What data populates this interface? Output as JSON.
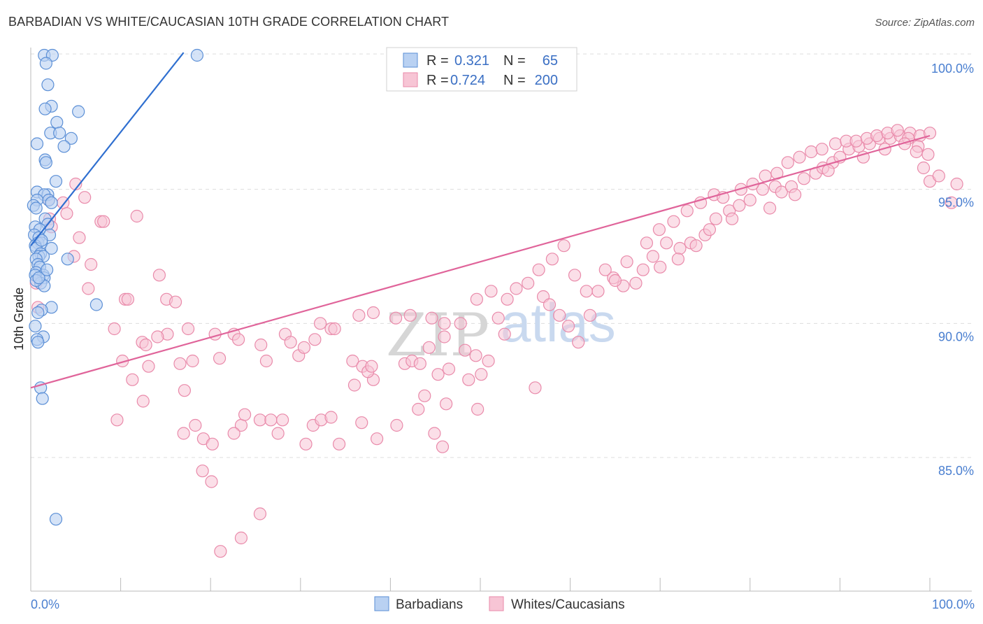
{
  "title": "BARBADIAN VS WHITE/CAUCASIAN 10TH GRADE CORRELATION CHART",
  "source": "Source: ZipAtlas.com",
  "watermark": {
    "zip": "ZIP",
    "atlas": "atlas"
  },
  "colors": {
    "barbadian_fill": "#b9d1f2",
    "barbadian_stroke": "#5b8fd6",
    "barbadian_line": "#2f6fd0",
    "white_fill": "#f7c5d5",
    "white_stroke": "#e98aaa",
    "white_line": "#e0649a",
    "grid": "#dddddd",
    "tick_label": "#4a7fd0"
  },
  "legend": {
    "rows": [
      {
        "r_label": "R =",
        "r_value": "0.321",
        "n_label": "N =",
        "n_value": "65"
      },
      {
        "r_label": "R =",
        "r_value": "0.724",
        "n_label": "N =",
        "n_value": "200"
      }
    ]
  },
  "bottom_legend": [
    "Barbadians",
    "Whites/Caucasians"
  ],
  "chart_data": {
    "type": "scatter",
    "title": "BARBADIAN VS WHITE/CAUCASIAN 10TH GRADE CORRELATION CHART",
    "xlabel": "",
    "ylabel": "10th Grade",
    "xlim": [
      0,
      100
    ],
    "ylim": [
      80.0,
      100.5
    ],
    "x_tick_labels": [
      "0.0%",
      "100.0%"
    ],
    "y_tick_labels": [
      "100.0%",
      "95.0%",
      "90.0%",
      "85.0%"
    ],
    "y_ticks": [
      100,
      95,
      90,
      85
    ],
    "grid": true,
    "legend_position": "top-center",
    "series": [
      {
        "name": "Barbadians",
        "r": 0.321,
        "n": 65,
        "trend": {
          "x": [
            0,
            17.0
          ],
          "y": [
            92.9,
            100.1
          ]
        },
        "points": [
          [
            1.5,
            100.0
          ],
          [
            2.4,
            100.0
          ],
          [
            18.5,
            100.0
          ],
          [
            1.7,
            99.7
          ],
          [
            1.9,
            98.9
          ],
          [
            2.3,
            98.1
          ],
          [
            1.6,
            98.0
          ],
          [
            5.3,
            97.9
          ],
          [
            2.9,
            97.5
          ],
          [
            2.2,
            97.1
          ],
          [
            3.2,
            97.1
          ],
          [
            4.5,
            96.9
          ],
          [
            0.7,
            96.7
          ],
          [
            3.7,
            96.6
          ],
          [
            1.6,
            96.1
          ],
          [
            1.7,
            96.0
          ],
          [
            2.8,
            95.3
          ],
          [
            0.7,
            94.9
          ],
          [
            1.9,
            94.8
          ],
          [
            1.5,
            94.8
          ],
          [
            0.7,
            94.6
          ],
          [
            2.0,
            94.6
          ],
          [
            2.3,
            94.5
          ],
          [
            0.3,
            94.4
          ],
          [
            0.6,
            94.3
          ],
          [
            1.6,
            93.9
          ],
          [
            1.9,
            93.7
          ],
          [
            0.5,
            93.6
          ],
          [
            1.0,
            93.5
          ],
          [
            2.1,
            93.3
          ],
          [
            0.4,
            93.3
          ],
          [
            0.9,
            93.2
          ],
          [
            0.8,
            93.0
          ],
          [
            1.2,
            93.0
          ],
          [
            0.5,
            92.9
          ],
          [
            2.3,
            92.8
          ],
          [
            0.6,
            92.8
          ],
          [
            1.1,
            92.6
          ],
          [
            0.9,
            92.5
          ],
          [
            1.4,
            92.5
          ],
          [
            0.6,
            92.4
          ],
          [
            4.1,
            92.4
          ],
          [
            0.8,
            92.2
          ],
          [
            1.0,
            92.1
          ],
          [
            0.6,
            91.9
          ],
          [
            1.4,
            91.8
          ],
          [
            1.5,
            91.7
          ],
          [
            0.5,
            91.8
          ],
          [
            1.1,
            91.5
          ],
          [
            1.5,
            91.4
          ],
          [
            0.6,
            91.6
          ],
          [
            0.9,
            91.7
          ],
          [
            7.3,
            90.7
          ],
          [
            2.3,
            90.6
          ],
          [
            1.2,
            90.5
          ],
          [
            0.8,
            90.4
          ],
          [
            0.5,
            89.9
          ],
          [
            1.4,
            89.5
          ],
          [
            0.7,
            89.4
          ],
          [
            0.8,
            89.3
          ],
          [
            1.1,
            87.6
          ],
          [
            1.3,
            87.2
          ],
          [
            2.8,
            82.7
          ],
          [
            1.2,
            93.1
          ],
          [
            1.8,
            92.0
          ]
        ]
      },
      {
        "name": "Whites/Caucasians",
        "r": 0.724,
        "n": 200,
        "trend": {
          "x": [
            0,
            100
          ],
          "y": [
            87.6,
            97.0
          ]
        },
        "points": [
          [
            5.0,
            95.2
          ],
          [
            6.0,
            94.7
          ],
          [
            2.0,
            94.6
          ],
          [
            3.6,
            94.5
          ],
          [
            4.0,
            94.1
          ],
          [
            2.1,
            93.9
          ],
          [
            7.8,
            93.8
          ],
          [
            8.1,
            93.8
          ],
          [
            11.8,
            94.0
          ],
          [
            5.4,
            93.2
          ],
          [
            2.3,
            93.6
          ],
          [
            4.8,
            92.5
          ],
          [
            6.7,
            92.2
          ],
          [
            0.6,
            91.5
          ],
          [
            14.3,
            91.8
          ],
          [
            6.4,
            91.3
          ],
          [
            10.5,
            90.9
          ],
          [
            10.8,
            90.9
          ],
          [
            15.1,
            90.9
          ],
          [
            16.1,
            90.8
          ],
          [
            0.8,
            90.6
          ],
          [
            9.3,
            89.8
          ],
          [
            15.2,
            89.6
          ],
          [
            17.5,
            89.8
          ],
          [
            12.4,
            89.3
          ],
          [
            12.8,
            89.2
          ],
          [
            14.1,
            89.5
          ],
          [
            20.5,
            89.6
          ],
          [
            22.6,
            89.6
          ],
          [
            23.1,
            89.4
          ],
          [
            25.6,
            89.2
          ],
          [
            28.3,
            89.6
          ],
          [
            28.9,
            89.3
          ],
          [
            29.8,
            88.8
          ],
          [
            31.6,
            89.4
          ],
          [
            32.2,
            90.0
          ],
          [
            30.4,
            89.1
          ],
          [
            10.2,
            88.6
          ],
          [
            13.1,
            88.4
          ],
          [
            16.6,
            88.5
          ],
          [
            18.0,
            88.6
          ],
          [
            21.0,
            88.7
          ],
          [
            26.2,
            88.6
          ],
          [
            33.4,
            89.8
          ],
          [
            33.8,
            89.8
          ],
          [
            35.8,
            88.6
          ],
          [
            36.9,
            88.4
          ],
          [
            38.1,
            87.9
          ],
          [
            37.5,
            88.2
          ],
          [
            37.9,
            88.4
          ],
          [
            36.0,
            87.7
          ],
          [
            36.8,
            86.3
          ],
          [
            41.6,
            88.5
          ],
          [
            42.4,
            88.6
          ],
          [
            43.3,
            88.5
          ],
          [
            44.3,
            89.1
          ],
          [
            45.3,
            88.1
          ],
          [
            46.5,
            88.3
          ],
          [
            46.0,
            89.5
          ],
          [
            48.3,
            89.0
          ],
          [
            50.1,
            88.1
          ],
          [
            49.5,
            88.8
          ],
          [
            50.9,
            88.6
          ],
          [
            52.7,
            89.6
          ],
          [
            9.6,
            86.4
          ],
          [
            11.3,
            87.9
          ],
          [
            12.5,
            87.1
          ],
          [
            17.1,
            87.5
          ],
          [
            18.3,
            86.2
          ],
          [
            19.2,
            85.7
          ],
          [
            20.2,
            85.5
          ],
          [
            17.0,
            85.9
          ],
          [
            23.4,
            86.2
          ],
          [
            23.8,
            86.6
          ],
          [
            25.5,
            86.4
          ],
          [
            26.7,
            86.4
          ],
          [
            27.5,
            85.9
          ],
          [
            28.0,
            86.4
          ],
          [
            30.6,
            85.5
          ],
          [
            31.4,
            86.2
          ],
          [
            32.3,
            86.4
          ],
          [
            33.4,
            86.5
          ],
          [
            34.3,
            85.5
          ],
          [
            22.6,
            85.9
          ],
          [
            19.1,
            84.5
          ],
          [
            20.1,
            84.1
          ],
          [
            25.5,
            82.9
          ],
          [
            21.1,
            81.5
          ],
          [
            23.4,
            82.0
          ],
          [
            40.7,
            86.2
          ],
          [
            43.1,
            86.8
          ],
          [
            43.8,
            87.3
          ],
          [
            46.2,
            87.0
          ],
          [
            38.5,
            85.7
          ],
          [
            44.9,
            85.9
          ],
          [
            45.8,
            85.4
          ],
          [
            48.7,
            87.9
          ],
          [
            49.7,
            86.8
          ],
          [
            56.1,
            87.6
          ],
          [
            38.1,
            90.4
          ],
          [
            36.5,
            90.3
          ],
          [
            40.6,
            90.2
          ],
          [
            42.2,
            90.3
          ],
          [
            44.6,
            90.2
          ],
          [
            46.0,
            90.0
          ],
          [
            47.8,
            90.0
          ],
          [
            49.6,
            90.9
          ],
          [
            51.2,
            91.2
          ],
          [
            53.0,
            90.9
          ],
          [
            52.0,
            90.2
          ],
          [
            54.0,
            91.3
          ],
          [
            55.3,
            91.5
          ],
          [
            57.0,
            91.0
          ],
          [
            57.7,
            90.7
          ],
          [
            58.8,
            90.3
          ],
          [
            59.8,
            89.9
          ],
          [
            60.9,
            89.3
          ],
          [
            62.2,
            90.3
          ],
          [
            63.1,
            91.2
          ],
          [
            64.8,
            91.7
          ],
          [
            65.9,
            91.4
          ],
          [
            67.3,
            91.5
          ],
          [
            68.1,
            92.0
          ],
          [
            69.2,
            92.5
          ],
          [
            70.7,
            93.0
          ],
          [
            72.2,
            92.8
          ],
          [
            73.4,
            93.0
          ],
          [
            75.0,
            93.3
          ],
          [
            76.2,
            93.9
          ],
          [
            77.7,
            94.2
          ],
          [
            78.8,
            94.4
          ],
          [
            80.0,
            94.6
          ],
          [
            81.4,
            95.0
          ],
          [
            82.8,
            95.1
          ],
          [
            83.5,
            94.9
          ],
          [
            84.6,
            95.1
          ],
          [
            86.0,
            95.4
          ],
          [
            87.3,
            95.6
          ],
          [
            88.1,
            95.8
          ],
          [
            89.2,
            96.0
          ],
          [
            90.0,
            96.2
          ],
          [
            91.0,
            96.5
          ],
          [
            92.1,
            96.6
          ],
          [
            93.3,
            96.7
          ],
          [
            94.4,
            96.9
          ],
          [
            95.6,
            96.9
          ],
          [
            96.7,
            97.0
          ],
          [
            97.8,
            97.1
          ],
          [
            98.9,
            97.0
          ],
          [
            100.0,
            97.1
          ],
          [
            60.5,
            91.8
          ],
          [
            61.8,
            91.2
          ],
          [
            63.9,
            92.0
          ],
          [
            65.0,
            91.6
          ],
          [
            66.3,
            92.3
          ],
          [
            68.5,
            93.0
          ],
          [
            69.9,
            93.5
          ],
          [
            71.5,
            93.8
          ],
          [
            73.0,
            94.2
          ],
          [
            74.5,
            94.5
          ],
          [
            76.0,
            94.8
          ],
          [
            77.0,
            94.7
          ],
          [
            79.0,
            95.0
          ],
          [
            80.3,
            95.2
          ],
          [
            81.7,
            95.5
          ],
          [
            83.0,
            95.6
          ],
          [
            84.2,
            96.0
          ],
          [
            85.5,
            96.2
          ],
          [
            86.8,
            96.4
          ],
          [
            88.0,
            96.5
          ],
          [
            89.5,
            96.7
          ],
          [
            90.7,
            96.8
          ],
          [
            91.8,
            96.8
          ],
          [
            93.0,
            96.9
          ],
          [
            94.1,
            97.0
          ],
          [
            95.3,
            97.1
          ],
          [
            96.4,
            97.2
          ],
          [
            97.6,
            96.9
          ],
          [
            98.7,
            96.6
          ],
          [
            99.8,
            96.3
          ],
          [
            56.5,
            92.0
          ],
          [
            58.0,
            92.4
          ],
          [
            59.3,
            92.9
          ],
          [
            70.0,
            92.1
          ],
          [
            72.0,
            92.4
          ],
          [
            74.0,
            92.9
          ],
          [
            75.5,
            93.5
          ],
          [
            78.0,
            93.9
          ],
          [
            82.2,
            94.3
          ],
          [
            85.0,
            94.8
          ],
          [
            88.7,
            95.7
          ],
          [
            92.6,
            96.2
          ],
          [
            95.0,
            96.5
          ],
          [
            97.2,
            96.7
          ],
          [
            98.5,
            96.4
          ],
          [
            99.3,
            95.8
          ],
          [
            100.0,
            95.3
          ],
          [
            102.4,
            94.5
          ],
          [
            101.0,
            95.5
          ],
          [
            103.0,
            95.2
          ]
        ]
      }
    ]
  }
}
